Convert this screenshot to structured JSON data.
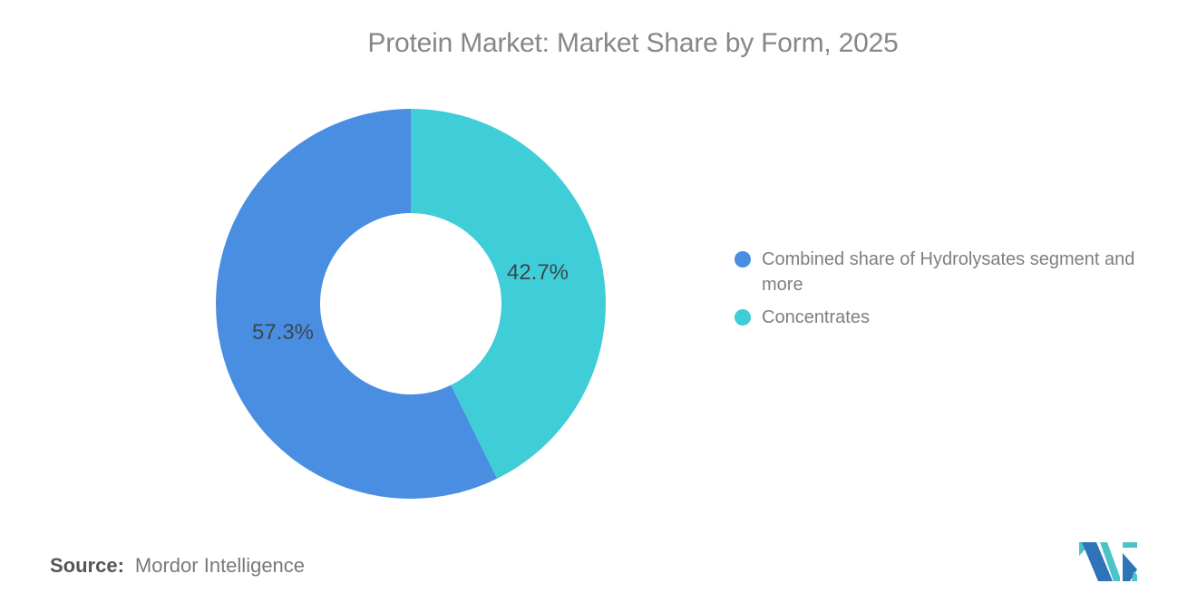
{
  "chart_data": {
    "type": "pie",
    "style": "donut",
    "title": "Protein Market: Market Share by Form, 2025",
    "legend_position": "right",
    "labels_on_slices": true,
    "start_angle": "top",
    "direction": "blue-left-teal-right",
    "slices": [
      {
        "label": "Combined share of Hydrolysates segment and more",
        "value": 57.3,
        "display_label": "57.3%",
        "color": "#4a8ee2"
      },
      {
        "label": "Concentrates",
        "value": 42.7,
        "display_label": "42.7%",
        "color": "#3fcdd7"
      }
    ]
  },
  "source": {
    "label": "Source:",
    "value": "Mordor Intelligence"
  },
  "logo": {
    "blue": "#2f73b9",
    "teal": "#4cc3c8"
  }
}
